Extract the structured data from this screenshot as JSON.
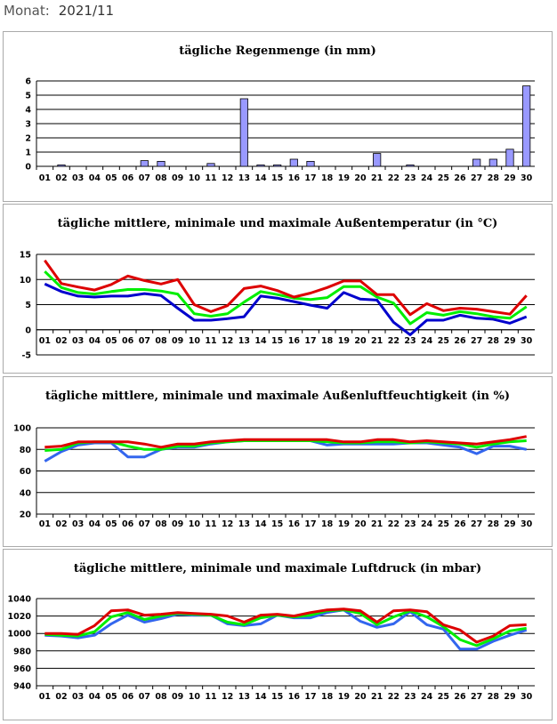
{
  "header": {
    "label": "Monat:",
    "value": "2021/11"
  },
  "chart_data": [
    {
      "type": "bar",
      "title": "tägliche Regenmenge (in mm)",
      "ylim": [
        0,
        6
      ],
      "yticks": [
        0,
        1,
        2,
        3,
        4,
        5,
        6
      ],
      "color": "#9999ff",
      "categories": [
        "01",
        "02",
        "03",
        "04",
        "05",
        "06",
        "07",
        "08",
        "09",
        "10",
        "11",
        "12",
        "13",
        "14",
        "15",
        "16",
        "17",
        "18",
        "19",
        "20",
        "21",
        "22",
        "23",
        "24",
        "25",
        "26",
        "27",
        "28",
        "29",
        "30"
      ],
      "series": [
        {
          "name": "Regen",
          "values": [
            0,
            0.1,
            0,
            0,
            0,
            0,
            0.4,
            0.35,
            0,
            0,
            0.2,
            0,
            4.75,
            0.1,
            0.1,
            0.5,
            0.35,
            0,
            0,
            0,
            0.9,
            0,
            0.1,
            0,
            0,
            0,
            0.5,
            0.5,
            1.2,
            5.65
          ]
        }
      ]
    },
    {
      "type": "line",
      "title": "tägliche mittlere, minimale und maximale Außentemperatur (in °C)",
      "ylim": [
        -5,
        15
      ],
      "yticks": [
        -5,
        0,
        5,
        10,
        15
      ],
      "categories": [
        "01",
        "02",
        "03",
        "04",
        "05",
        "06",
        "07",
        "08",
        "09",
        "10",
        "11",
        "12",
        "13",
        "14",
        "15",
        "16",
        "17",
        "18",
        "19",
        "20",
        "21",
        "22",
        "23",
        "24",
        "25",
        "26",
        "27",
        "28",
        "29",
        "30"
      ],
      "series": [
        {
          "name": "min",
          "color": "#0000cc",
          "values": [
            9.1,
            7.6,
            6.7,
            6.5,
            6.7,
            6.7,
            7.2,
            6.8,
            4.3,
            1.9,
            1.9,
            2.2,
            2.6,
            6.7,
            6.3,
            5.6,
            4.9,
            4.3,
            7.4,
            6.1,
            5.9,
            1.5,
            -1,
            1.9,
            1.9,
            2.9,
            2.3,
            2.1,
            1.3,
            2.6
          ]
        },
        {
          "name": "mittel",
          "color": "#00ee00",
          "values": [
            11.6,
            8.4,
            7.4,
            7.1,
            7.6,
            8,
            8,
            7.7,
            7.1,
            3.2,
            2.7,
            3.2,
            5.5,
            7.6,
            7,
            6.3,
            6,
            6.4,
            8.6,
            8.6,
            6.5,
            5.3,
            1.2,
            3.4,
            2.9,
            3.6,
            3.2,
            2.6,
            2.3,
            4.6
          ]
        },
        {
          "name": "max",
          "color": "#dd0000",
          "values": [
            13.8,
            9.2,
            8.5,
            7.9,
            9,
            10.7,
            9.8,
            9.1,
            10,
            5,
            3.6,
            4.8,
            8.2,
            8.7,
            7.8,
            6.5,
            7.3,
            8.4,
            9.7,
            9.7,
            7,
            7,
            3,
            5.2,
            3.8,
            4.3,
            4.1,
            3.6,
            3.1,
            6.8
          ]
        }
      ]
    },
    {
      "type": "line",
      "title": "tägliche mittlere, minimale und maximale Außenluftfeuchtigkeit (in %)",
      "ylim": [
        20,
        100
      ],
      "yticks": [
        20,
        40,
        60,
        80,
        100
      ],
      "categories": [
        "01",
        "02",
        "03",
        "04",
        "05",
        "06",
        "07",
        "08",
        "09",
        "10",
        "11",
        "12",
        "13",
        "14",
        "15",
        "16",
        "17",
        "18",
        "19",
        "20",
        "21",
        "22",
        "23",
        "24",
        "25",
        "26",
        "27",
        "28",
        "29",
        "30"
      ],
      "series": [
        {
          "name": "min",
          "color": "#3366ee",
          "values": [
            69,
            78,
            84,
            86,
            86,
            73,
            73,
            80,
            82,
            82,
            85,
            87,
            88,
            88,
            88,
            88,
            88,
            84,
            85,
            85,
            85,
            85,
            86,
            86,
            84,
            82,
            76,
            83,
            83,
            80
          ]
        },
        {
          "name": "mittel",
          "color": "#00ee00",
          "values": [
            79,
            80,
            86,
            87,
            87,
            83,
            80,
            80,
            83,
            83,
            86,
            87,
            88,
            88,
            88,
            88,
            88,
            87,
            86,
            86,
            87,
            87,
            86,
            87,
            86,
            85,
            82,
            85,
            87,
            88
          ]
        },
        {
          "name": "max",
          "color": "#dd0000",
          "values": [
            82,
            83,
            87,
            87,
            87,
            87,
            85,
            82,
            85,
            85,
            87,
            88,
            89,
            89,
            89,
            89,
            89,
            89,
            87,
            87,
            89,
            89,
            87,
            88,
            87,
            86,
            85,
            87,
            89,
            92
          ]
        }
      ]
    },
    {
      "type": "line",
      "title": "tägliche mittlere, minimale und maximale Luftdruck (in mbar)",
      "ylim": [
        940,
        1040
      ],
      "yticks": [
        940,
        960,
        980,
        1000,
        1020,
        1040
      ],
      "categories": [
        "01",
        "02",
        "03",
        "04",
        "05",
        "06",
        "07",
        "08",
        "09",
        "10",
        "11",
        "12",
        "13",
        "14",
        "15",
        "16",
        "17",
        "18",
        "19",
        "20",
        "21",
        "22",
        "23",
        "24",
        "25",
        "26",
        "27",
        "28",
        "29",
        "30"
      ],
      "series": [
        {
          "name": "min",
          "color": "#3366ee",
          "values": [
            998,
            997,
            995,
            998,
            1011,
            1021,
            1013,
            1017,
            1022,
            1021,
            1021,
            1011,
            1009,
            1011,
            1021,
            1018,
            1018,
            1024,
            1027,
            1014,
            1007,
            1011,
            1025,
            1010,
            1005,
            982,
            982,
            991,
            998,
            1004
          ]
        },
        {
          "name": "mittel",
          "color": "#00ee00",
          "values": [
            999,
            998,
            997,
            1002,
            1019,
            1024,
            1016,
            1020,
            1023,
            1022,
            1021,
            1013,
            1010,
            1018,
            1021,
            1019,
            1021,
            1026,
            1027,
            1023,
            1010,
            1019,
            1026,
            1019,
            1008,
            993,
            986,
            994,
            1003,
            1006
          ]
        },
        {
          "name": "max",
          "color": "#dd0000",
          "values": [
            1000,
            1000,
            999,
            1009,
            1026,
            1027,
            1021,
            1022,
            1024,
            1023,
            1022,
            1020,
            1013,
            1021,
            1022,
            1020,
            1024,
            1027,
            1028,
            1026,
            1013,
            1026,
            1027,
            1025,
            1010,
            1004,
            990,
            997,
            1009,
            1010
          ]
        }
      ]
    }
  ]
}
